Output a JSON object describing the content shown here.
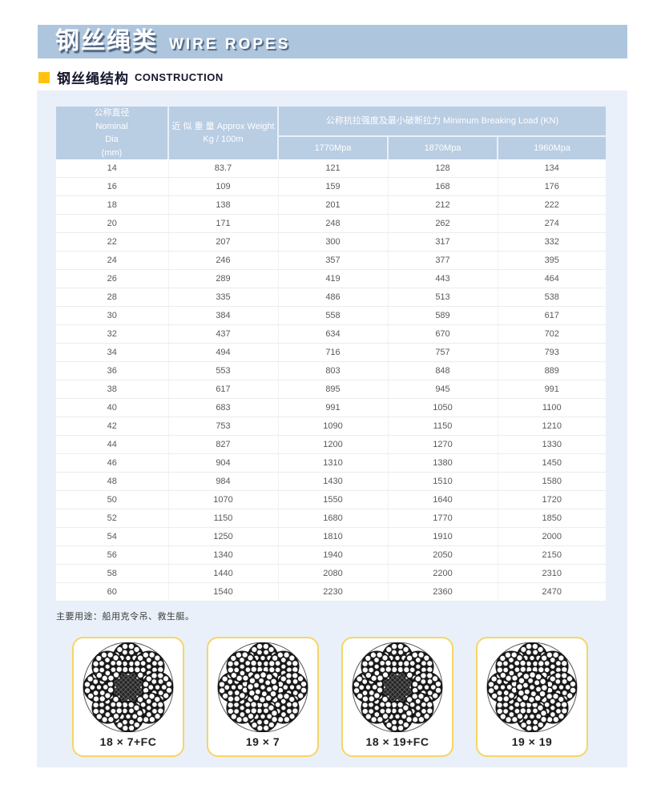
{
  "banner": {
    "title_zh": "钢丝绳类",
    "title_en": "WIRE ROPES"
  },
  "section": {
    "title_zh": "钢丝绳结构",
    "title_en": "CONSTRUCTION"
  },
  "table": {
    "header": {
      "dia_lines": [
        "公称直径",
        "Nominal",
        "Dia",
        "(mm)"
      ],
      "weight_line1": "近 似 重 量 Approx Weight",
      "weight_line2": "Kg / 100m",
      "breaking_load": "公称抗拉强度及最小破断拉力 Minimum Breaking Load (KN)",
      "grades": [
        "1770Mpa",
        "1870Mpa",
        "1960Mpa"
      ]
    },
    "rows": [
      [
        "14",
        "83.7",
        "121",
        "128",
        "134"
      ],
      [
        "16",
        "109",
        "159",
        "168",
        "176"
      ],
      [
        "18",
        "138",
        "201",
        "212",
        "222"
      ],
      [
        "20",
        "171",
        "248",
        "262",
        "274"
      ],
      [
        "22",
        "207",
        "300",
        "317",
        "332"
      ],
      [
        "24",
        "246",
        "357",
        "377",
        "395"
      ],
      [
        "26",
        "289",
        "419",
        "443",
        "464"
      ],
      [
        "28",
        "335",
        "486",
        "513",
        "538"
      ],
      [
        "30",
        "384",
        "558",
        "589",
        "617"
      ],
      [
        "32",
        "437",
        "634",
        "670",
        "702"
      ],
      [
        "34",
        "494",
        "716",
        "757",
        "793"
      ],
      [
        "36",
        "553",
        "803",
        "848",
        "889"
      ],
      [
        "38",
        "617",
        "895",
        "945",
        "991"
      ],
      [
        "40",
        "683",
        "991",
        "1050",
        "1100"
      ],
      [
        "42",
        "753",
        "1090",
        "1150",
        "1210"
      ],
      [
        "44",
        "827",
        "1200",
        "1270",
        "1330"
      ],
      [
        "46",
        "904",
        "1310",
        "1380",
        "1450"
      ],
      [
        "48",
        "984",
        "1430",
        "1510",
        "1580"
      ],
      [
        "50",
        "1070",
        "1550",
        "1640",
        "1720"
      ],
      [
        "52",
        "1150",
        "1680",
        "1770",
        "1850"
      ],
      [
        "54",
        "1250",
        "1810",
        "1910",
        "2000"
      ],
      [
        "56",
        "1340",
        "1940",
        "2050",
        "2150"
      ],
      [
        "58",
        "1440",
        "2080",
        "2200",
        "2310"
      ],
      [
        "60",
        "1540",
        "2230",
        "2360",
        "2470"
      ]
    ]
  },
  "note": "主要用途：船用克令吊、救生艇。",
  "diagrams": [
    {
      "label": "18 × 7+FC",
      "core": "fiber"
    },
    {
      "label": "19 × 7",
      "core": "wire"
    },
    {
      "label": "18 × 19+FC",
      "core": "fiber"
    },
    {
      "label": "19 × 19",
      "core": "wire"
    }
  ],
  "colors": {
    "banner_bg": "#aec6dd",
    "header_bg": "#b9cde3",
    "panel_bg": "#e9f0f9",
    "accent_yellow": "#ffc20e",
    "card_border": "#f6d567"
  }
}
